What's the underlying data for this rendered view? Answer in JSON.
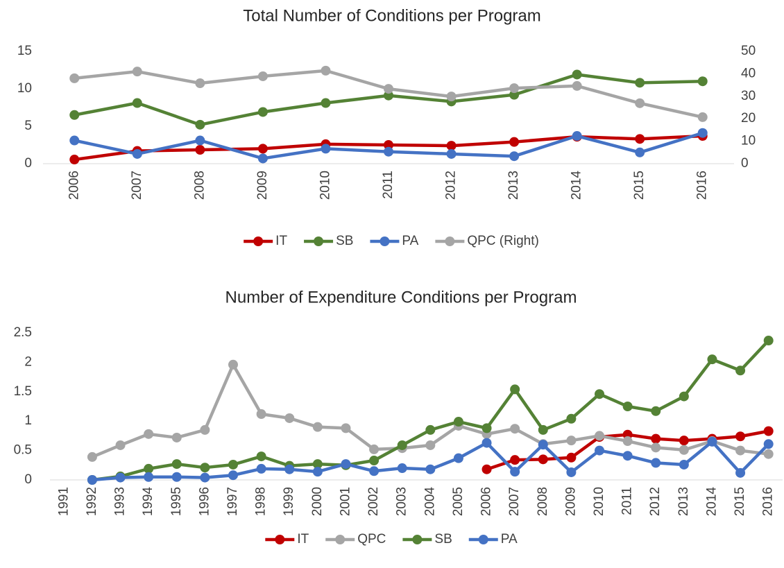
{
  "chart_data": [
    {
      "type": "line",
      "title": "Total Number of Conditions per Program",
      "legend": "bottom",
      "categories": [
        "2006",
        "2007",
        "2008",
        "2009",
        "2010",
        "2011",
        "2012",
        "2013",
        "2014",
        "2015",
        "2016"
      ],
      "ylim": [
        0,
        15
      ],
      "yticks": [
        0,
        5,
        10,
        15
      ],
      "y2lim": [
        0,
        50
      ],
      "y2ticks": [
        0,
        10,
        20,
        30,
        40,
        50
      ],
      "series": [
        {
          "name": "IT",
          "color": "#c00000",
          "values": [
            0.55,
            1.7,
            1.85,
            2.0,
            2.6,
            2.5,
            2.4,
            2.9,
            3.6,
            3.3,
            3.7
          ]
        },
        {
          "name": "SB",
          "color": "#548235",
          "values": [
            6.5,
            8.1,
            5.2,
            6.9,
            8.1,
            9.1,
            8.3,
            9.2,
            11.9,
            10.8,
            11.0
          ]
        },
        {
          "name": "PA",
          "color": "#4472c4",
          "values": [
            3.1,
            1.3,
            3.1,
            0.7,
            2.0,
            1.6,
            1.3,
            1.0,
            3.7,
            1.5,
            4.1
          ]
        },
        {
          "name": "QPC (Right)",
          "color": "#a5a5a5",
          "axis": "y2",
          "values": [
            38.0,
            41.0,
            35.8,
            38.9,
            41.4,
            33.3,
            29.9,
            33.6,
            34.6,
            26.9,
            20.7
          ]
        }
      ]
    },
    {
      "type": "line",
      "title": "Number of Expenditure Conditions per Program",
      "legend": "bottom",
      "categories": [
        "1991",
        "1992",
        "1993",
        "1994",
        "1995",
        "1996",
        "1997",
        "1998",
        "1999",
        "2000",
        "2001",
        "2002",
        "2003",
        "2004",
        "2005",
        "2006",
        "2007",
        "2008",
        "2009",
        "2010",
        "2011",
        "2012",
        "2013",
        "2014",
        "2015",
        "2016"
      ],
      "ylim": [
        0,
        2.5
      ],
      "yticks": [
        0,
        0.5,
        1,
        1.5,
        2,
        2.5
      ],
      "series": [
        {
          "name": "IT",
          "color": "#c00000",
          "values": [
            null,
            null,
            null,
            null,
            null,
            null,
            null,
            null,
            null,
            null,
            null,
            null,
            null,
            null,
            null,
            0.18,
            0.34,
            0.35,
            0.38,
            0.73,
            0.77,
            0.7,
            0.67,
            0.7,
            0.74,
            0.83
          ]
        },
        {
          "name": "QPC",
          "color": "#a5a5a5",
          "values": [
            null,
            0.39,
            0.59,
            0.78,
            0.72,
            0.85,
            1.96,
            1.12,
            1.05,
            0.9,
            0.88,
            0.52,
            0.54,
            0.59,
            0.92,
            0.78,
            0.87,
            0.61,
            0.67,
            0.75,
            0.66,
            0.55,
            0.51,
            0.66,
            0.5,
            0.44
          ]
        },
        {
          "name": "SB",
          "color": "#548235",
          "values": [
            null,
            0,
            0.06,
            0.19,
            0.27,
            0.21,
            0.26,
            0.4,
            0.24,
            0.27,
            0.25,
            0.33,
            0.59,
            0.85,
            0.99,
            0.88,
            1.54,
            0.85,
            1.04,
            1.46,
            1.25,
            1.17,
            1.42,
            2.05,
            1.86,
            2.37
          ]
        },
        {
          "name": "PA",
          "color": "#4472c4",
          "values": [
            null,
            0,
            0.04,
            0.05,
            0.05,
            0.04,
            0.08,
            0.19,
            0.18,
            0.14,
            0.27,
            0.15,
            0.2,
            0.18,
            0.37,
            0.63,
            0.14,
            0.6,
            0.13,
            0.5,
            0.41,
            0.29,
            0.26,
            0.65,
            0.12,
            0.61
          ]
        }
      ]
    }
  ]
}
